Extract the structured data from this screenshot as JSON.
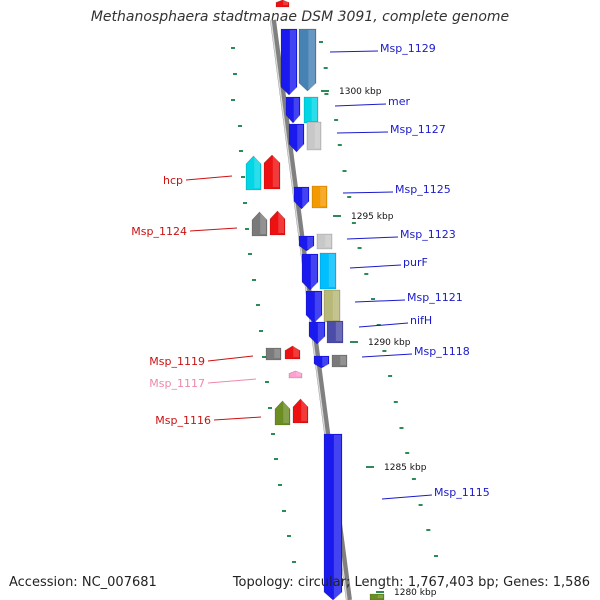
{
  "title": "Methanosphaera stadtmanae DSM 3091, complete genome",
  "footer": {
    "accession_label": "Accession:",
    "accession": "NC_007681",
    "topology_label": "Topology:",
    "topology": "circular",
    "length_label": "Length:",
    "length": "1,767,403 bp",
    "genes_label": "Genes:",
    "genes": "1,586"
  },
  "colors": {
    "backbone": "#808080",
    "tick": "#2e8b57",
    "label_blue": "#1a1acc",
    "label_red": "#cc1111",
    "label_pink": "#ee88aa",
    "gene_blue": "#1a1aee",
    "gene_steel": "#4682b4",
    "gene_cyan": "#00d6e6",
    "gene_light_gray": "#c8c8c8",
    "gene_orange": "#f39a00",
    "gene_gray": "#7a7a7a",
    "gene_red": "#ee1111",
    "gene_khaki": "#b8b878",
    "gene_deep_sky": "#00bfff",
    "gene_slate": "#4b4ba8",
    "gene_olive": "#6b8e23",
    "gene_pink": "#ff9ecf"
  },
  "ticks": [
    {
      "label": "1300 kbp"
    },
    {
      "label": "1295 kbp"
    },
    {
      "label": "1290 kbp"
    },
    {
      "label": "1285 kbp"
    },
    {
      "label": "1280 kbp"
    }
  ],
  "gene_labels": [
    {
      "text": "Msp_1129",
      "side": "right",
      "color": "label_blue"
    },
    {
      "text": "mer",
      "side": "right",
      "color": "label_blue"
    },
    {
      "text": "Msp_1127",
      "side": "right",
      "color": "label_blue"
    },
    {
      "text": "hcp",
      "side": "left",
      "color": "label_red"
    },
    {
      "text": "Msp_1125",
      "side": "right",
      "color": "label_blue"
    },
    {
      "text": "Msp_1124",
      "side": "left",
      "color": "label_red"
    },
    {
      "text": "Msp_1123",
      "side": "right",
      "color": "label_blue"
    },
    {
      "text": "purF",
      "side": "right",
      "color": "label_blue"
    },
    {
      "text": "Msp_1121",
      "side": "right",
      "color": "label_blue"
    },
    {
      "text": "nifH",
      "side": "right",
      "color": "label_blue"
    },
    {
      "text": "Msp_1118",
      "side": "right",
      "color": "label_blue"
    },
    {
      "text": "Msp_1119",
      "side": "left",
      "color": "label_red"
    },
    {
      "text": "Msp_1117",
      "side": "left",
      "color": "label_pink"
    },
    {
      "text": "Msp_1116",
      "side": "left",
      "color": "label_red"
    },
    {
      "text": "Msp_1115",
      "side": "right",
      "color": "label_blue"
    }
  ]
}
